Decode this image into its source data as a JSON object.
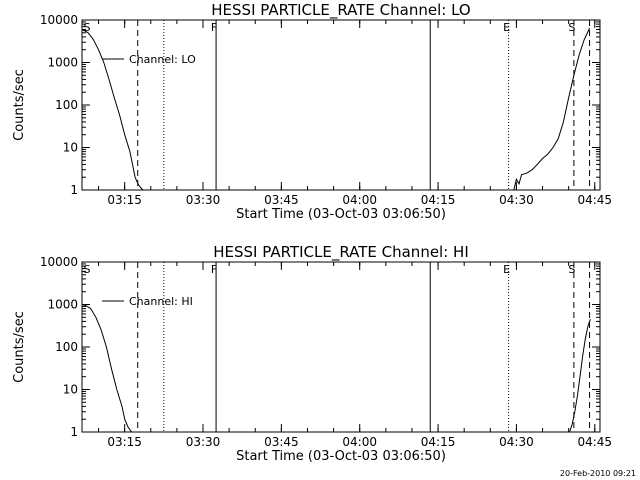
{
  "footer": {
    "timestamp": "20-Feb-2010 09:21"
  },
  "chart_data": [
    {
      "type": "line",
      "title": "HESSI PARTICLE_RATE Channel: LO",
      "xlabel": "Start Time (03-Oct-03 03:06:50)",
      "ylabel": "Counts/sec",
      "xlim": [
        "03:06:50",
        "04:46:00"
      ],
      "ylim": [
        1,
        10000
      ],
      "yscale": "log",
      "grid": false,
      "legend": "top-left",
      "x_ticks": [
        "03:15",
        "03:30",
        "03:45",
        "04:00",
        "04:15",
        "04:30",
        "04:45"
      ],
      "y_ticks": [
        "1",
        "10",
        "100",
        "1000",
        "10000"
      ],
      "series": [
        {
          "name": "Channel: LO",
          "x": [
            "03:06:50",
            "03:08:00",
            "03:09:00",
            "03:10:00",
            "03:11:00",
            "03:12:00",
            "03:13:00",
            "03:14:00",
            "03:15:00",
            "03:16:00",
            "03:16:30",
            "03:17:00",
            "03:17:40",
            "03:18:30"
          ],
          "y": [
            6000,
            5000,
            3500,
            2000,
            1000,
            400,
            150,
            60,
            20,
            8,
            4,
            2,
            1.3,
            1
          ]
        },
        {
          "name": "Channel: LO",
          "x": [
            "04:29:30",
            "04:30:00",
            "04:30:30",
            "04:31:00",
            "04:32:00",
            "04:33:00",
            "04:34:00",
            "04:35:00",
            "04:36:00",
            "04:37:00",
            "04:38:00",
            "04:39:00",
            "04:40:00",
            "04:41:00",
            "04:42:00",
            "04:43:00",
            "04:44:00"
          ],
          "y": [
            1,
            1.8,
            1.4,
            2.3,
            2.5,
            3,
            4,
            5.5,
            7,
            10,
            16,
            40,
            150,
            500,
            1500,
            3500,
            6500
          ]
        }
      ],
      "vlines": [
        {
          "x": "03:17:30",
          "style": "dashed",
          "label": ""
        },
        {
          "x": "03:22:30",
          "style": "dotted",
          "label": ""
        },
        {
          "x": "03:32:30",
          "style": "solid",
          "label": "F"
        },
        {
          "x": "04:13:30",
          "style": "solid",
          "label": ""
        },
        {
          "x": "04:28:30",
          "style": "dotted",
          "label": "E"
        },
        {
          "x": "04:41:00",
          "style": "dashed",
          "label": "S"
        },
        {
          "x": "04:44:00",
          "style": "dashed",
          "label": ""
        }
      ],
      "corner_label": "S"
    },
    {
      "type": "line",
      "title": "HESSI PARTICLE_RATE Channel: HI",
      "xlabel": "Start Time (03-Oct-03 03:06:50)",
      "ylabel": "Counts/sec",
      "xlim": [
        "03:06:50",
        "04:46:00"
      ],
      "ylim": [
        1,
        10000
      ],
      "yscale": "log",
      "grid": false,
      "legend": "top-left",
      "x_ticks": [
        "03:15",
        "03:30",
        "03:45",
        "04:00",
        "04:15",
        "04:30",
        "04:45"
      ],
      "y_ticks": [
        "1",
        "10",
        "100",
        "1000",
        "10000"
      ],
      "series": [
        {
          "name": "Channel: HI",
          "x": [
            "03:06:50",
            "03:07:30",
            "03:08:30",
            "03:09:30",
            "03:10:30",
            "03:11:30",
            "03:12:30",
            "03:13:30",
            "03:14:30",
            "03:15:00",
            "03:15:40",
            "03:16:20"
          ],
          "y": [
            1000,
            950,
            800,
            500,
            250,
            100,
            30,
            10,
            4,
            2,
            1.3,
            1
          ]
        },
        {
          "name": "Channel: HI",
          "x": [
            "04:40:10",
            "04:40:40",
            "04:41:10",
            "04:41:40",
            "04:42:10",
            "04:42:40",
            "04:43:10",
            "04:43:40",
            "04:44:10"
          ],
          "y": [
            1,
            1.5,
            3,
            7,
            20,
            60,
            150,
            300,
            450
          ]
        }
      ],
      "vlines": [
        {
          "x": "03:17:30",
          "style": "dashed",
          "label": ""
        },
        {
          "x": "03:22:30",
          "style": "dotted",
          "label": ""
        },
        {
          "x": "03:32:30",
          "style": "solid",
          "label": "F"
        },
        {
          "x": "04:13:30",
          "style": "solid",
          "label": ""
        },
        {
          "x": "04:28:30",
          "style": "dotted",
          "label": "E"
        },
        {
          "x": "04:41:00",
          "style": "dashed",
          "label": "S"
        },
        {
          "x": "04:44:00",
          "style": "dashed",
          "label": ""
        }
      ],
      "corner_label": "S"
    }
  ]
}
